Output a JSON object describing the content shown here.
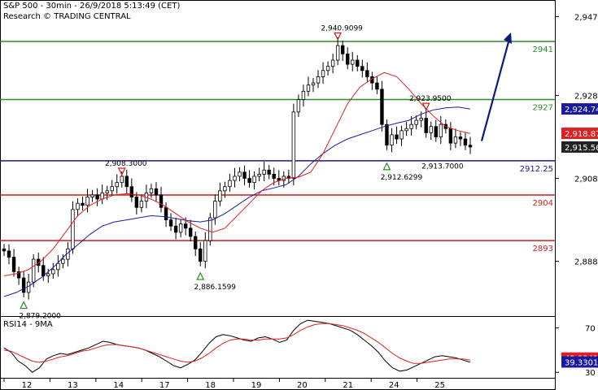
{
  "header": {
    "title": "S&P 500 - 30min - 26/9/2018 5:13:49 (CET)",
    "credit": "Research © TRADING CENTRAL"
  },
  "colors": {
    "resistance": "#2e8b2e",
    "pivot": "#1a1a8c",
    "support": "#cc1f1f",
    "ma_fast": "#e02020",
    "ma_slow": "#1a1aa0",
    "candle": "#000000",
    "arrow": "#0d1a7a",
    "rsi": "#000000",
    "rsi_signal": "#e02020",
    "gray_tag": "#222222",
    "blue_tag": "#1a1aa0",
    "red_tag": "#e02020"
  },
  "chart_data": {
    "type": "line",
    "title": "S&P 500 - 30min - 26/9/2018 5:13:49 (CET)",
    "x_ticks": [
      "12",
      "13",
      "14",
      "17",
      "18",
      "19",
      "20",
      "21",
      "24",
      "25"
    ],
    "y_ticks": [
      "2,947",
      "2,928",
      "2,908",
      "2,888"
    ],
    "ylim": [
      2875,
      2951
    ],
    "close_series": [
      2890.5,
      2889.0,
      2885.5,
      2884.0,
      2880.5,
      2883.0,
      2888.5,
      2887.0,
      2884.5,
      2885.0,
      2886.0,
      2887.5,
      2888.5,
      2891.0,
      2900.5,
      2902.0,
      2901.5,
      2903.5,
      2904.0,
      2903.0,
      2904.5,
      2905.0,
      2906.0,
      2907.0,
      2908.5,
      2906.0,
      2903.5,
      2901.0,
      2902.5,
      2904.5,
      2905.5,
      2904.0,
      2901.0,
      2898.0,
      2896.5,
      2895.0,
      2897.0,
      2896.0,
      2894.0,
      2891.0,
      2888.0,
      2893.0,
      2898.5,
      2902.5,
      2905.0,
      2906.0,
      2907.5,
      2908.5,
      2909.5,
      2908.0,
      2907.0,
      2908.5,
      2909.0,
      2910.0,
      2909.0,
      2908.0,
      2907.5,
      2908.5,
      2908.0,
      2924.0,
      2927.0,
      2929.0,
      2930.5,
      2931.0,
      2932.5,
      2934.0,
      2935.0,
      2936.5,
      2940.0,
      2938.0,
      2935.5,
      2936.5,
      2935.0,
      2934.0,
      2932.5,
      2931.0,
      2929.5,
      2921.0,
      2916.0,
      2918.5,
      2917.5,
      2919.5,
      2920.0,
      2921.0,
      2922.0,
      2922.5,
      2919.0,
      2920.5,
      2918.0,
      2921.0,
      2920.0,
      2916.5,
      2918.0,
      2917.5,
      2916.0,
      2915.56
    ],
    "ma_fast_series": [
      2884.5,
      2885.0,
      2886.0,
      2888.0,
      2891.0,
      2895.0,
      2899.0,
      2901.5,
      2903.0,
      2904.0,
      2904.3,
      2904.0,
      2903.0,
      2901.5,
      2899.5,
      2897.5,
      2896.0,
      2895.0,
      2896.0,
      2899.0,
      2902.0,
      2905.0,
      2907.0,
      2908.0,
      2908.3,
      2909.5,
      2914.0,
      2920.0,
      2926.0,
      2930.0,
      2932.0,
      2933.5,
      2932.5,
      2929.5,
      2926.0,
      2923.0,
      2920.5,
      2919.5,
      2918.8
    ],
    "ma_slow_series": [
      2879.5,
      2880.5,
      2882.0,
      2884.0,
      2886.5,
      2889.5,
      2892.0,
      2894.5,
      2896.5,
      2897.5,
      2898.0,
      2898.5,
      2899.0,
      2898.8,
      2898.3,
      2897.8,
      2897.5,
      2898.0,
      2899.5,
      2901.5,
      2903.5,
      2905.0,
      2905.7,
      2906.5,
      2908.5,
      2911.5,
      2914.0,
      2916.0,
      2917.5,
      2918.5,
      2919.5,
      2920.5,
      2921.3,
      2922.0,
      2923.5,
      2924.5,
      2925.0,
      2925.2,
      2924.74
    ],
    "horizontal_lines": [
      {
        "name": "resistance-2",
        "value": 2941,
        "label": "2941",
        "color": "resistance"
      },
      {
        "name": "resistance-1",
        "value": 2927,
        "label": "2927",
        "color": "resistance"
      },
      {
        "name": "pivot",
        "value": 2912.25,
        "label": "2912.25",
        "color": "pivot"
      },
      {
        "name": "support-1",
        "value": 2904,
        "label": "2904",
        "color": "support"
      },
      {
        "name": "support-2",
        "value": 2893,
        "label": "2893",
        "color": "support"
      }
    ],
    "price_tags": [
      {
        "name": "ma-slow",
        "value": 2924.74,
        "label": "2,924.74",
        "color": "blue_tag"
      },
      {
        "name": "ma-fast",
        "value": 2918.87,
        "label": "2,918.87",
        "color": "red_tag"
      },
      {
        "name": "last",
        "value": 2915.56,
        "label": "2,915.56",
        "color": "gray_tag"
      }
    ],
    "annotations": [
      {
        "name": "low-1",
        "label": "2,879.2000",
        "value": 2879.2,
        "bar": 4,
        "kind": "low"
      },
      {
        "name": "high-1",
        "label": "2,908.3000",
        "value": 2908.3,
        "bar": 24,
        "kind": "high"
      },
      {
        "name": "low-2",
        "label": "2,886.1599",
        "value": 2886.16,
        "bar": 40,
        "kind": "low"
      },
      {
        "name": "high-2",
        "label": "2,940.9099",
        "value": 2940.91,
        "bar": 68,
        "kind": "high"
      },
      {
        "name": "high-3",
        "label": "2,923.9500",
        "value": 2923.95,
        "bar": 86,
        "kind": "high"
      },
      {
        "name": "low-3",
        "label": "2,912.6299",
        "value": 2912.63,
        "bar": 78,
        "kind": "low"
      },
      {
        "name": "low-4",
        "label": "2,913.7000",
        "value": 2913.7,
        "bar": 91,
        "kind": "text"
      }
    ],
    "projection_arrow": {
      "from_value": 2917.0,
      "to_value": 2942.0
    }
  },
  "rsi": {
    "title": "RSI14 - 9MA",
    "y_ticks": [
      "70",
      "30"
    ],
    "ylim": [
      25,
      80
    ],
    "values": [
      52,
      48,
      40,
      36,
      30,
      34,
      42,
      45,
      47,
      46,
      48,
      50,
      52,
      55,
      58,
      57,
      55,
      54,
      53,
      52,
      50,
      47,
      44,
      40,
      36,
      34,
      37,
      41,
      48,
      56,
      62,
      64,
      63,
      61,
      59,
      58,
      61,
      62,
      60,
      57,
      59,
      68,
      74,
      77,
      76,
      75,
      74,
      72,
      70,
      68,
      64,
      59,
      54,
      48,
      40,
      34,
      31,
      32,
      35,
      38,
      41,
      44,
      45,
      44,
      43,
      41,
      39
    ],
    "signal": [
      50,
      49,
      46,
      43,
      40,
      39,
      40,
      42,
      44,
      45,
      47,
      49,
      50,
      52,
      54,
      55,
      55,
      54,
      53,
      52,
      50,
      48,
      46,
      44,
      42,
      40,
      39,
      40,
      43,
      47,
      52,
      56,
      59,
      60,
      60,
      59,
      59,
      60,
      60,
      60,
      61,
      64,
      68,
      71,
      73,
      74,
      74,
      73,
      72,
      70,
      68,
      65,
      61,
      57,
      52,
      47,
      43,
      40,
      38,
      38,
      39,
      40,
      41,
      42,
      42,
      42,
      41
    ],
    "tags": [
      {
        "name": "rsi-signal",
        "value": 42.8341,
        "label": "42.8341",
        "color": "red_tag"
      },
      {
        "name": "rsi-value",
        "value": 39.3301,
        "label": "39.3301",
        "color": "blue_tag"
      }
    ]
  }
}
